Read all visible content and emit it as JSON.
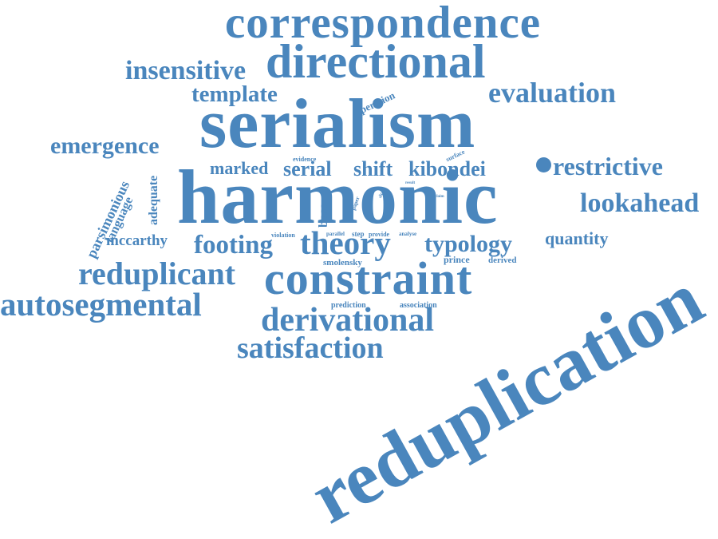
{
  "color": "#4a86bd",
  "words": [
    "correspondence",
    "directional",
    "insensitive",
    "template",
    "operation",
    "evaluation",
    "serialism",
    "emergence",
    "evidence",
    "surface",
    "marked",
    "serial",
    "shift",
    "kibondei",
    "restrictive",
    "harmonic",
    "parsimonious",
    "language",
    "adequate",
    "base",
    "paper",
    "single",
    "result",
    "pro",
    "claim",
    "lookahead",
    "mccarthy",
    "footing",
    "theory",
    "typology",
    "quantity",
    "violation",
    "parallel",
    "step",
    "provide",
    "analyse",
    "reduplicant",
    "constraint",
    "smolensky",
    "prince",
    "derived",
    "autosegmental",
    "prediction",
    "association",
    "derivational",
    "satisfaction",
    "reduplication",
    "f",
    "slr"
  ]
}
